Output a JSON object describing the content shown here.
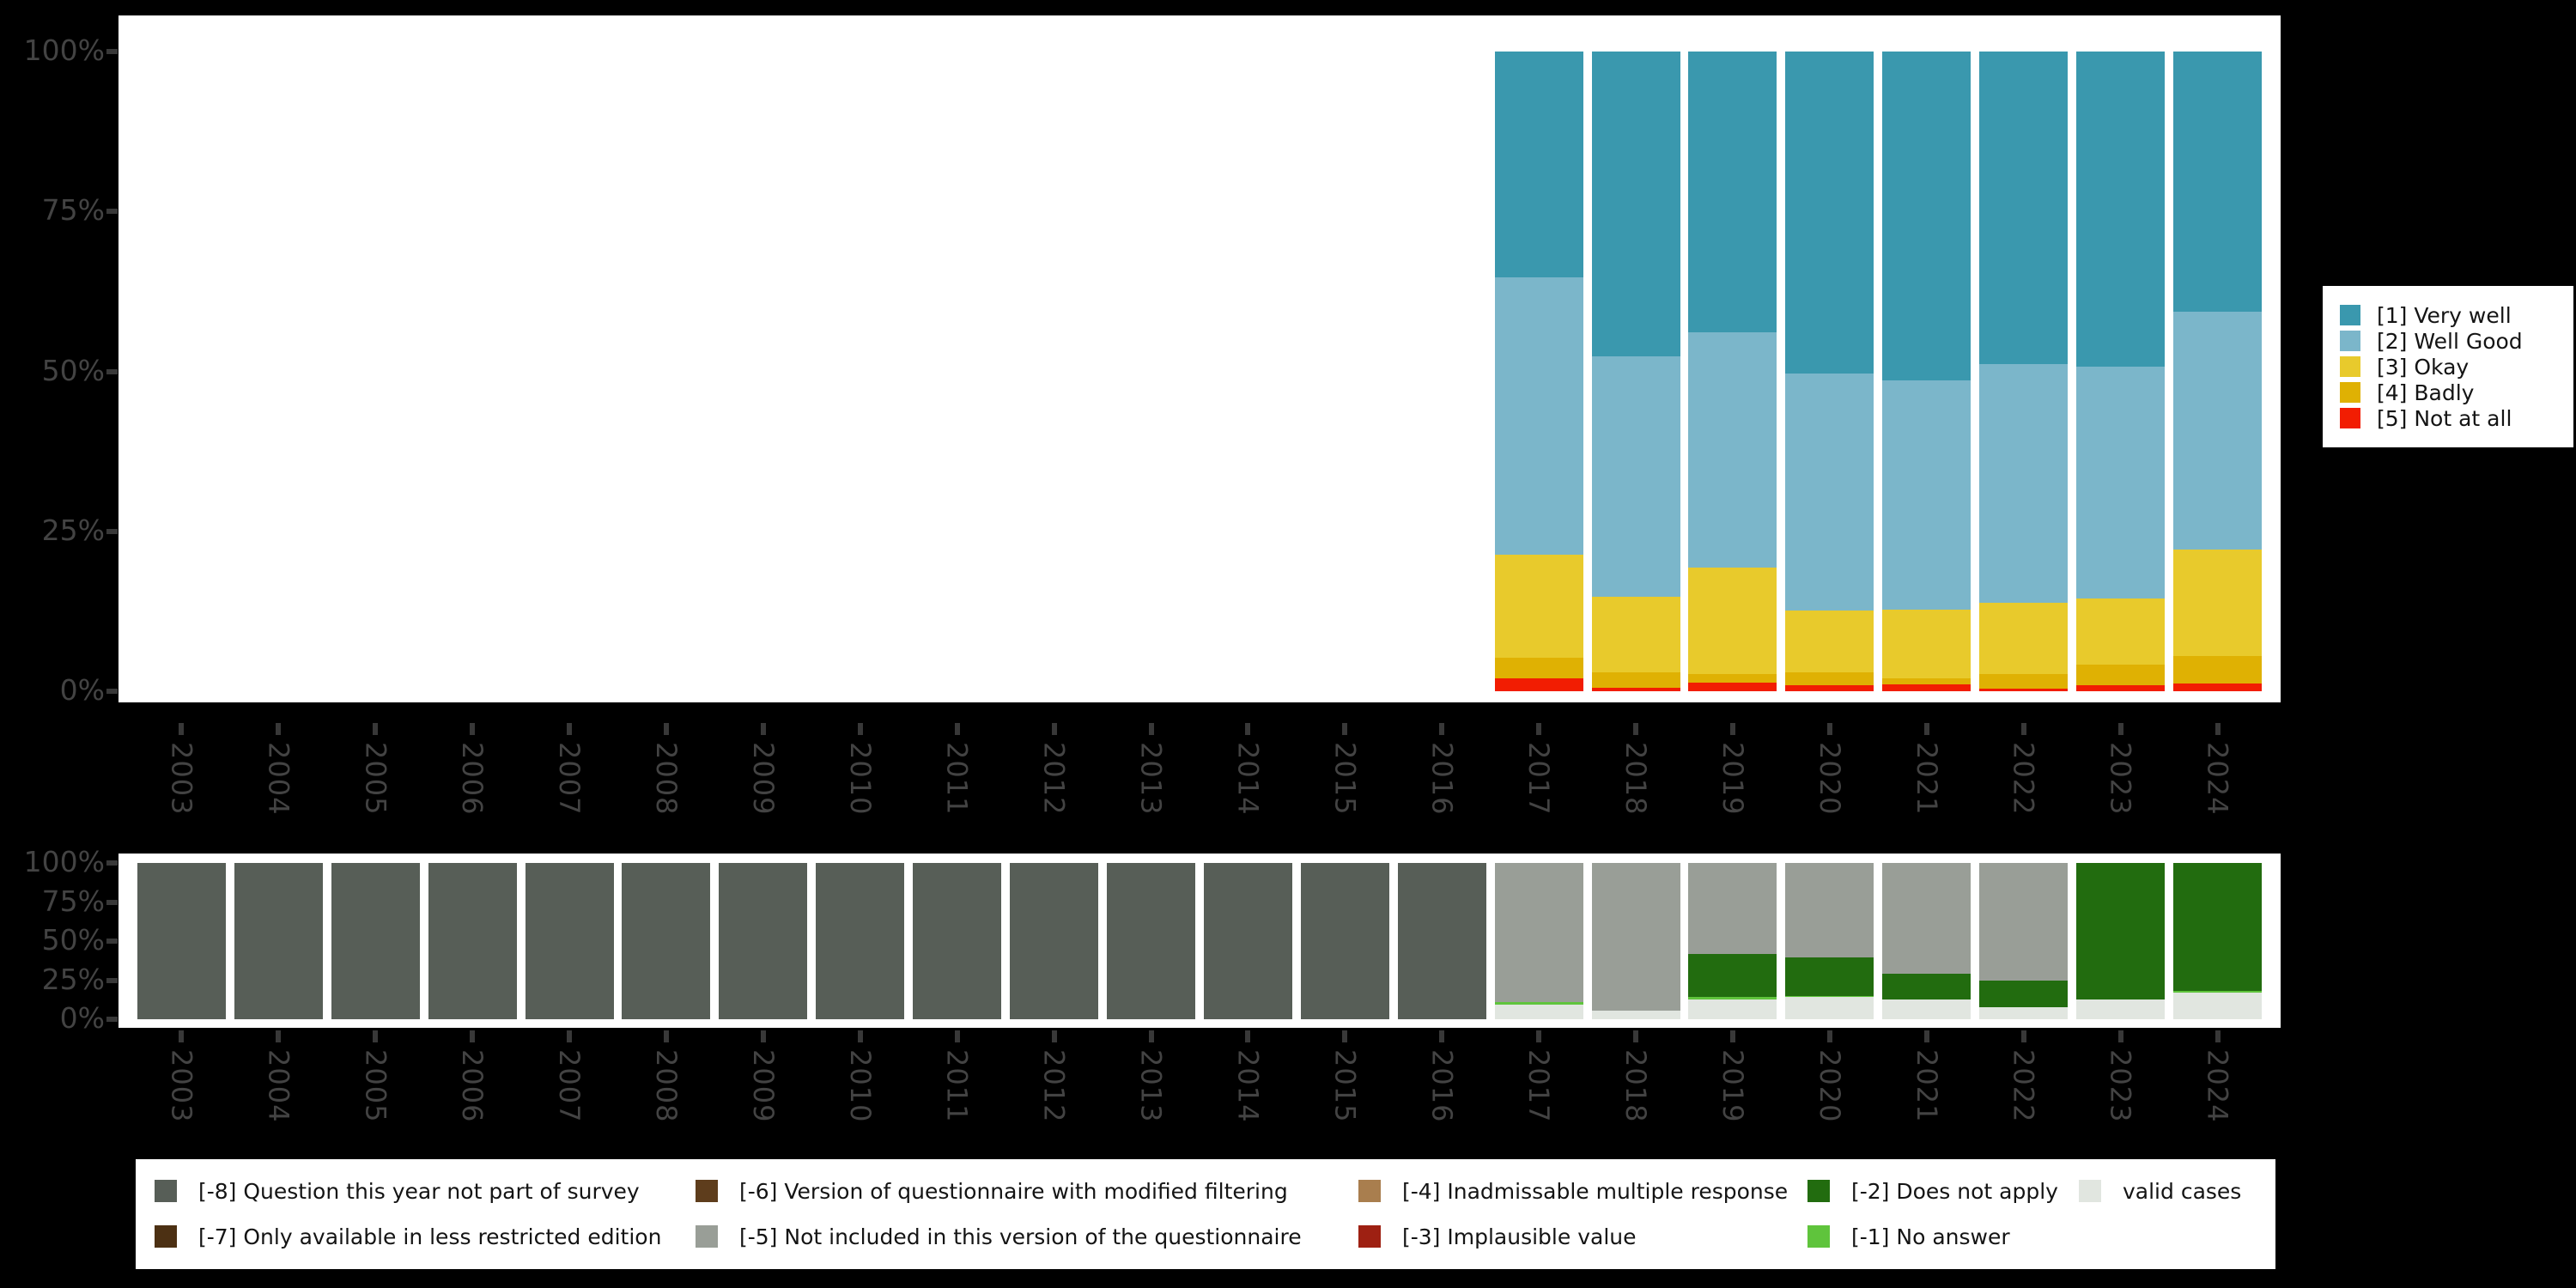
{
  "background": "#000000",
  "axes": {
    "y_tick_labels": [
      "100%",
      "75%",
      "50%",
      "25%",
      "0%"
    ],
    "x_tick_labels": [
      "2003",
      "2004",
      "2005",
      "2006",
      "2007",
      "2008",
      "2009",
      "2010",
      "2011",
      "2012",
      "2013",
      "2014",
      "2015",
      "2016",
      "2017",
      "2018",
      "2019",
      "2020",
      "2021",
      "2022",
      "2023",
      "2024"
    ]
  },
  "legend_top": {
    "items": [
      {
        "label": "[1] Very well",
        "color": "#3a98ae"
      },
      {
        "label": "[2] Well Good",
        "color": "#7bb6ca"
      },
      {
        "label": "[3] Okay",
        "color": "#e8ca2c"
      },
      {
        "label": "[4] Badly",
        "color": "#dfb103"
      },
      {
        "label": "[5] Not at all",
        "color": "#f21d02"
      }
    ]
  },
  "legend_bottom": {
    "items": [
      {
        "label": "[-8] Question this year not part of survey",
        "color": "#575e57",
        "col": 0,
        "row": 0
      },
      {
        "label": "[-7] Only available in less restricted edition",
        "color": "#4c3013",
        "col": 0,
        "row": 1
      },
      {
        "label": "[-6] Version of questionnaire with modified filtering",
        "color": "#5e3d1c",
        "col": 1,
        "row": 0
      },
      {
        "label": "[-5] Not included in this version of the questionnaire",
        "color": "#999e97",
        "col": 1,
        "row": 1
      },
      {
        "label": "[-4] Inadmissable multiple response",
        "color": "#a97e4e",
        "col": 2,
        "row": 0
      },
      {
        "label": "[-3] Implausible value",
        "color": "#9e2012",
        "col": 2,
        "row": 1
      },
      {
        "label": "[-2] Does not apply",
        "color": "#226c0f",
        "col": 3,
        "row": 0
      },
      {
        "label": "[-1] No answer",
        "color": "#5fc43c",
        "col": 3,
        "row": 1
      },
      {
        "label": "valid cases",
        "color": "#e1e6e0",
        "col": 4,
        "row": 0
      }
    ]
  },
  "chart_data": [
    {
      "type": "bar",
      "stacked": true,
      "percent": true,
      "title": "",
      "xlabel": "",
      "ylabel": "",
      "ylim": [
        0,
        100
      ],
      "y_ticks": [
        "0%",
        "25%",
        "50%",
        "75%",
        "100%"
      ],
      "grid": false,
      "legend_position": "right",
      "categories": [
        "2003",
        "2004",
        "2005",
        "2006",
        "2007",
        "2008",
        "2009",
        "2010",
        "2011",
        "2012",
        "2013",
        "2014",
        "2015",
        "2016",
        "2017",
        "2018",
        "2019",
        "2020",
        "2021",
        "2022",
        "2023",
        "2024"
      ],
      "series": [
        {
          "name": "[1] Very well",
          "color": "#3a98ae",
          "values": [
            null,
            null,
            null,
            null,
            null,
            null,
            null,
            null,
            null,
            null,
            null,
            null,
            null,
            null,
            35.3,
            47.7,
            43.9,
            50.3,
            51.4,
            48.9,
            49.3,
            40.7
          ]
        },
        {
          "name": "[2] Well Good",
          "color": "#7bb6ca",
          "values": [
            null,
            null,
            null,
            null,
            null,
            null,
            null,
            null,
            null,
            null,
            null,
            null,
            null,
            null,
            43.4,
            37.5,
            36.8,
            37.1,
            35.9,
            37.3,
            36.2,
            37.2
          ]
        },
        {
          "name": "[3] Okay",
          "color": "#e8ca2c",
          "values": [
            null,
            null,
            null,
            null,
            null,
            null,
            null,
            null,
            null,
            null,
            null,
            null,
            null,
            null,
            16.1,
            11.9,
            16.6,
            9.6,
            10.7,
            11.1,
            10.3,
            16.6
          ]
        },
        {
          "name": "[4] Badly",
          "color": "#dfb103",
          "values": [
            null,
            null,
            null,
            null,
            null,
            null,
            null,
            null,
            null,
            null,
            null,
            null,
            null,
            null,
            3.2,
            2.4,
            1.3,
            2.1,
            0.9,
            2.3,
            3.3,
            4.25
          ]
        },
        {
          "name": "[5] Not at all",
          "color": "#f21d02",
          "values": [
            null,
            null,
            null,
            null,
            null,
            null,
            null,
            null,
            null,
            null,
            null,
            null,
            null,
            null,
            2.0,
            0.5,
            1.4,
            0.9,
            1.1,
            0.4,
            0.9,
            1.25
          ]
        }
      ]
    },
    {
      "type": "bar",
      "stacked": true,
      "percent": true,
      "title": "",
      "xlabel": "",
      "ylabel": "",
      "ylim": [
        0,
        100
      ],
      "y_ticks": [
        "0%",
        "25%",
        "50%",
        "75%",
        "100%"
      ],
      "grid": false,
      "legend_position": "bottom",
      "categories": [
        "2003",
        "2004",
        "2005",
        "2006",
        "2007",
        "2008",
        "2009",
        "2010",
        "2011",
        "2012",
        "2013",
        "2014",
        "2015",
        "2016",
        "2017",
        "2018",
        "2019",
        "2020",
        "2021",
        "2022",
        "2023",
        "2024"
      ],
      "series": [
        {
          "name": "[-8] Question this year not part of survey",
          "color": "#575e57",
          "values": [
            100,
            100,
            100,
            100,
            100,
            100,
            100,
            100,
            100,
            100,
            100,
            100,
            100,
            100,
            0,
            0,
            0,
            0,
            0,
            0,
            0,
            0
          ]
        },
        {
          "name": "[-5] Not included in this version of the questionnaire",
          "color": "#999e97",
          "values": [
            0,
            0,
            0,
            0,
            0,
            0,
            0,
            0,
            0,
            0,
            0,
            0,
            0,
            0,
            89.0,
            94.3,
            58.1,
            60.4,
            70.9,
            75.3,
            0,
            0
          ]
        },
        {
          "name": "[-2] Does not apply",
          "color": "#226c0f",
          "values": [
            0,
            0,
            0,
            0,
            0,
            0,
            0,
            0,
            0,
            0,
            0,
            0,
            0,
            0,
            0,
            0,
            27.6,
            24.7,
            16.5,
            16.9,
            87.4,
            81.7
          ]
        },
        {
          "name": "[-1] No answer",
          "color": "#5fc43c",
          "values": [
            0,
            0,
            0,
            0,
            0,
            0,
            0,
            0,
            0,
            0,
            0,
            0,
            0,
            0,
            1.4,
            0,
            1.4,
            0.6,
            0,
            0,
            0,
            1.1
          ]
        },
        {
          "name": "valid cases",
          "color": "#e1e6e0",
          "values": [
            0,
            0,
            0,
            0,
            0,
            0,
            0,
            0,
            0,
            0,
            0,
            0,
            0,
            0,
            9.6,
            5.7,
            12.9,
            14.3,
            12.6,
            7.8,
            12.6,
            17.2
          ]
        }
      ]
    }
  ]
}
